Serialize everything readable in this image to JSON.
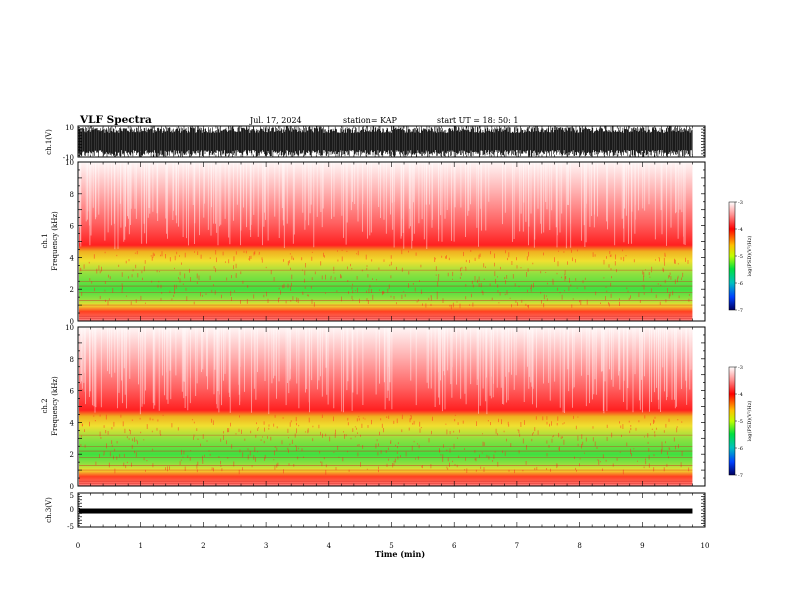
{
  "header": {
    "title": "VLF Spectra",
    "date": "Jul. 17, 2024",
    "station": "station= KAP",
    "start": "start  UT =   18: 50: 1"
  },
  "chart_data": [
    {
      "type": "line",
      "name": "ch1-waveform",
      "ylabel": "ch.1(V)",
      "ylim": [
        -10,
        10
      ],
      "yticks": [
        "10",
        "-10"
      ],
      "xlim": [
        0,
        10
      ],
      "note_values": "dense saturated signal, mostly filling the range"
    },
    {
      "type": "heatmap",
      "name": "ch1-spectrogram",
      "ylabel": "ch.1",
      "ylabel2": "Frequency (kHz)",
      "ylim": [
        0,
        10
      ],
      "yticks": [
        "0",
        "2",
        "4",
        "6",
        "8",
        "10"
      ],
      "xlim": [
        0,
        9.8
      ],
      "bands_khz": {
        "green_low": 1.0,
        "green_high": 4.5,
        "red_top": 10
      },
      "colorbar": {
        "ticks": [
          "-3",
          "-4",
          "-5",
          "-6",
          "-7"
        ],
        "label": "log(PSD)(V²/Hz)",
        "range": [
          -7,
          -3
        ]
      }
    },
    {
      "type": "heatmap",
      "name": "ch2-spectrogram",
      "ylabel": "ch.2",
      "ylabel2": "Frequency (kHz)",
      "ylim": [
        0,
        10
      ],
      "yticks": [
        "0",
        "2",
        "4",
        "6",
        "8",
        "10"
      ],
      "xlim": [
        0,
        9.8
      ],
      "bands_khz": {
        "green_low": 1.0,
        "green_high": 4.5,
        "red_top": 10
      },
      "colorbar": {
        "ticks": [
          "-3",
          "-4",
          "-5",
          "-6",
          "-7"
        ],
        "label": "log(PSD)(V²/Hz)",
        "range": [
          -7,
          -3
        ]
      }
    },
    {
      "type": "line",
      "name": "ch3-waveform",
      "ylabel": "ch.3(V)",
      "ylim": [
        -5,
        5
      ],
      "yticks": [
        "5",
        "0",
        "-5"
      ],
      "xlim": [
        0,
        10
      ],
      "level": -0.3
    }
  ],
  "xaxis": {
    "label": "Time (min)",
    "ticks": [
      "0",
      "1",
      "2",
      "3",
      "4",
      "5",
      "6",
      "7",
      "8",
      "9",
      "10"
    ]
  },
  "colors": {
    "red": "#ff2020",
    "green": "#40e040",
    "yellow": "#f0e030",
    "black": "#000000"
  }
}
